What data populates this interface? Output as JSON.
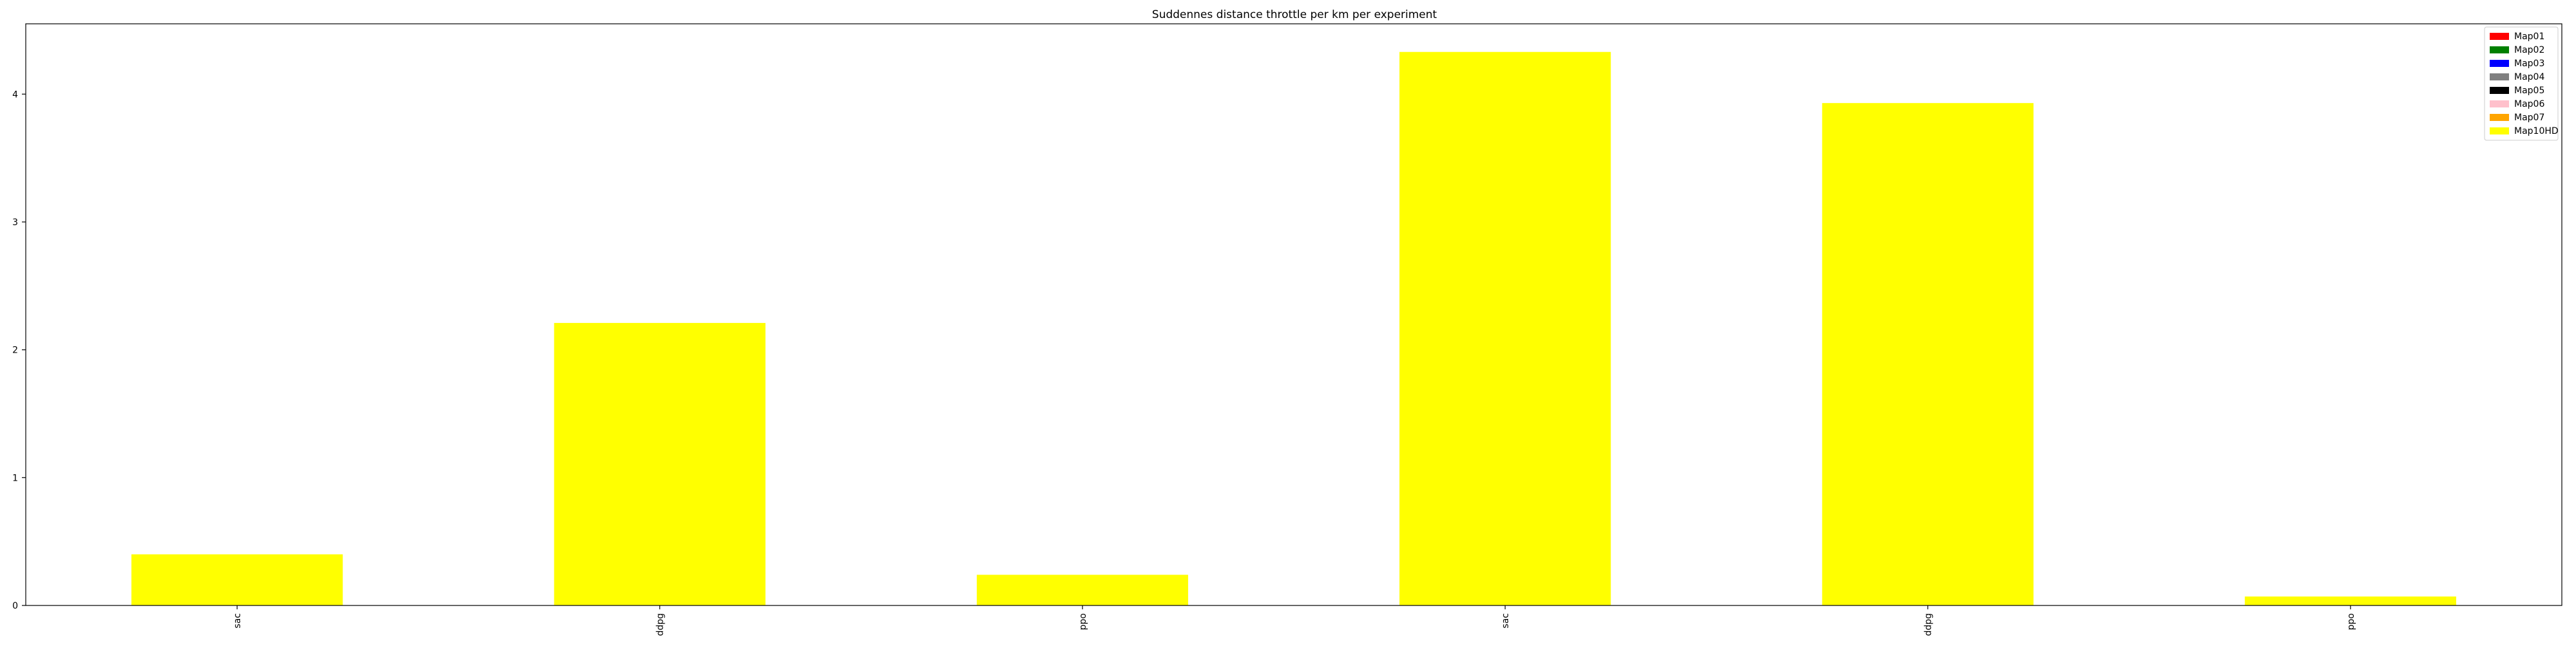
{
  "chart_data": {
    "type": "bar",
    "title": "Suddennes distance throttle per km per experiment",
    "xlabel": "",
    "ylabel": "",
    "categories": [
      "sac",
      "ddpg",
      "ppo",
      "sac",
      "ddpg",
      "ppo"
    ],
    "values": [
      0.4,
      2.21,
      0.24,
      4.33,
      3.93,
      0.07
    ],
    "bar_color": "#ffff00",
    "ylim": [
      0,
      4.55
    ],
    "yticks": [
      0,
      1,
      2,
      3,
      4
    ],
    "grid": false,
    "legend_position": "upper right",
    "legend": [
      {
        "label": "Map01",
        "color": "#ff0000"
      },
      {
        "label": "Map02",
        "color": "#008000"
      },
      {
        "label": "Map03",
        "color": "#0000ff"
      },
      {
        "label": "Map04",
        "color": "#808080"
      },
      {
        "label": "Map05",
        "color": "#000000"
      },
      {
        "label": "Map06",
        "color": "#ffc0cb"
      },
      {
        "label": "Map07",
        "color": "#ffa500"
      },
      {
        "label": "Map10HD",
        "color": "#ffff00"
      }
    ]
  }
}
